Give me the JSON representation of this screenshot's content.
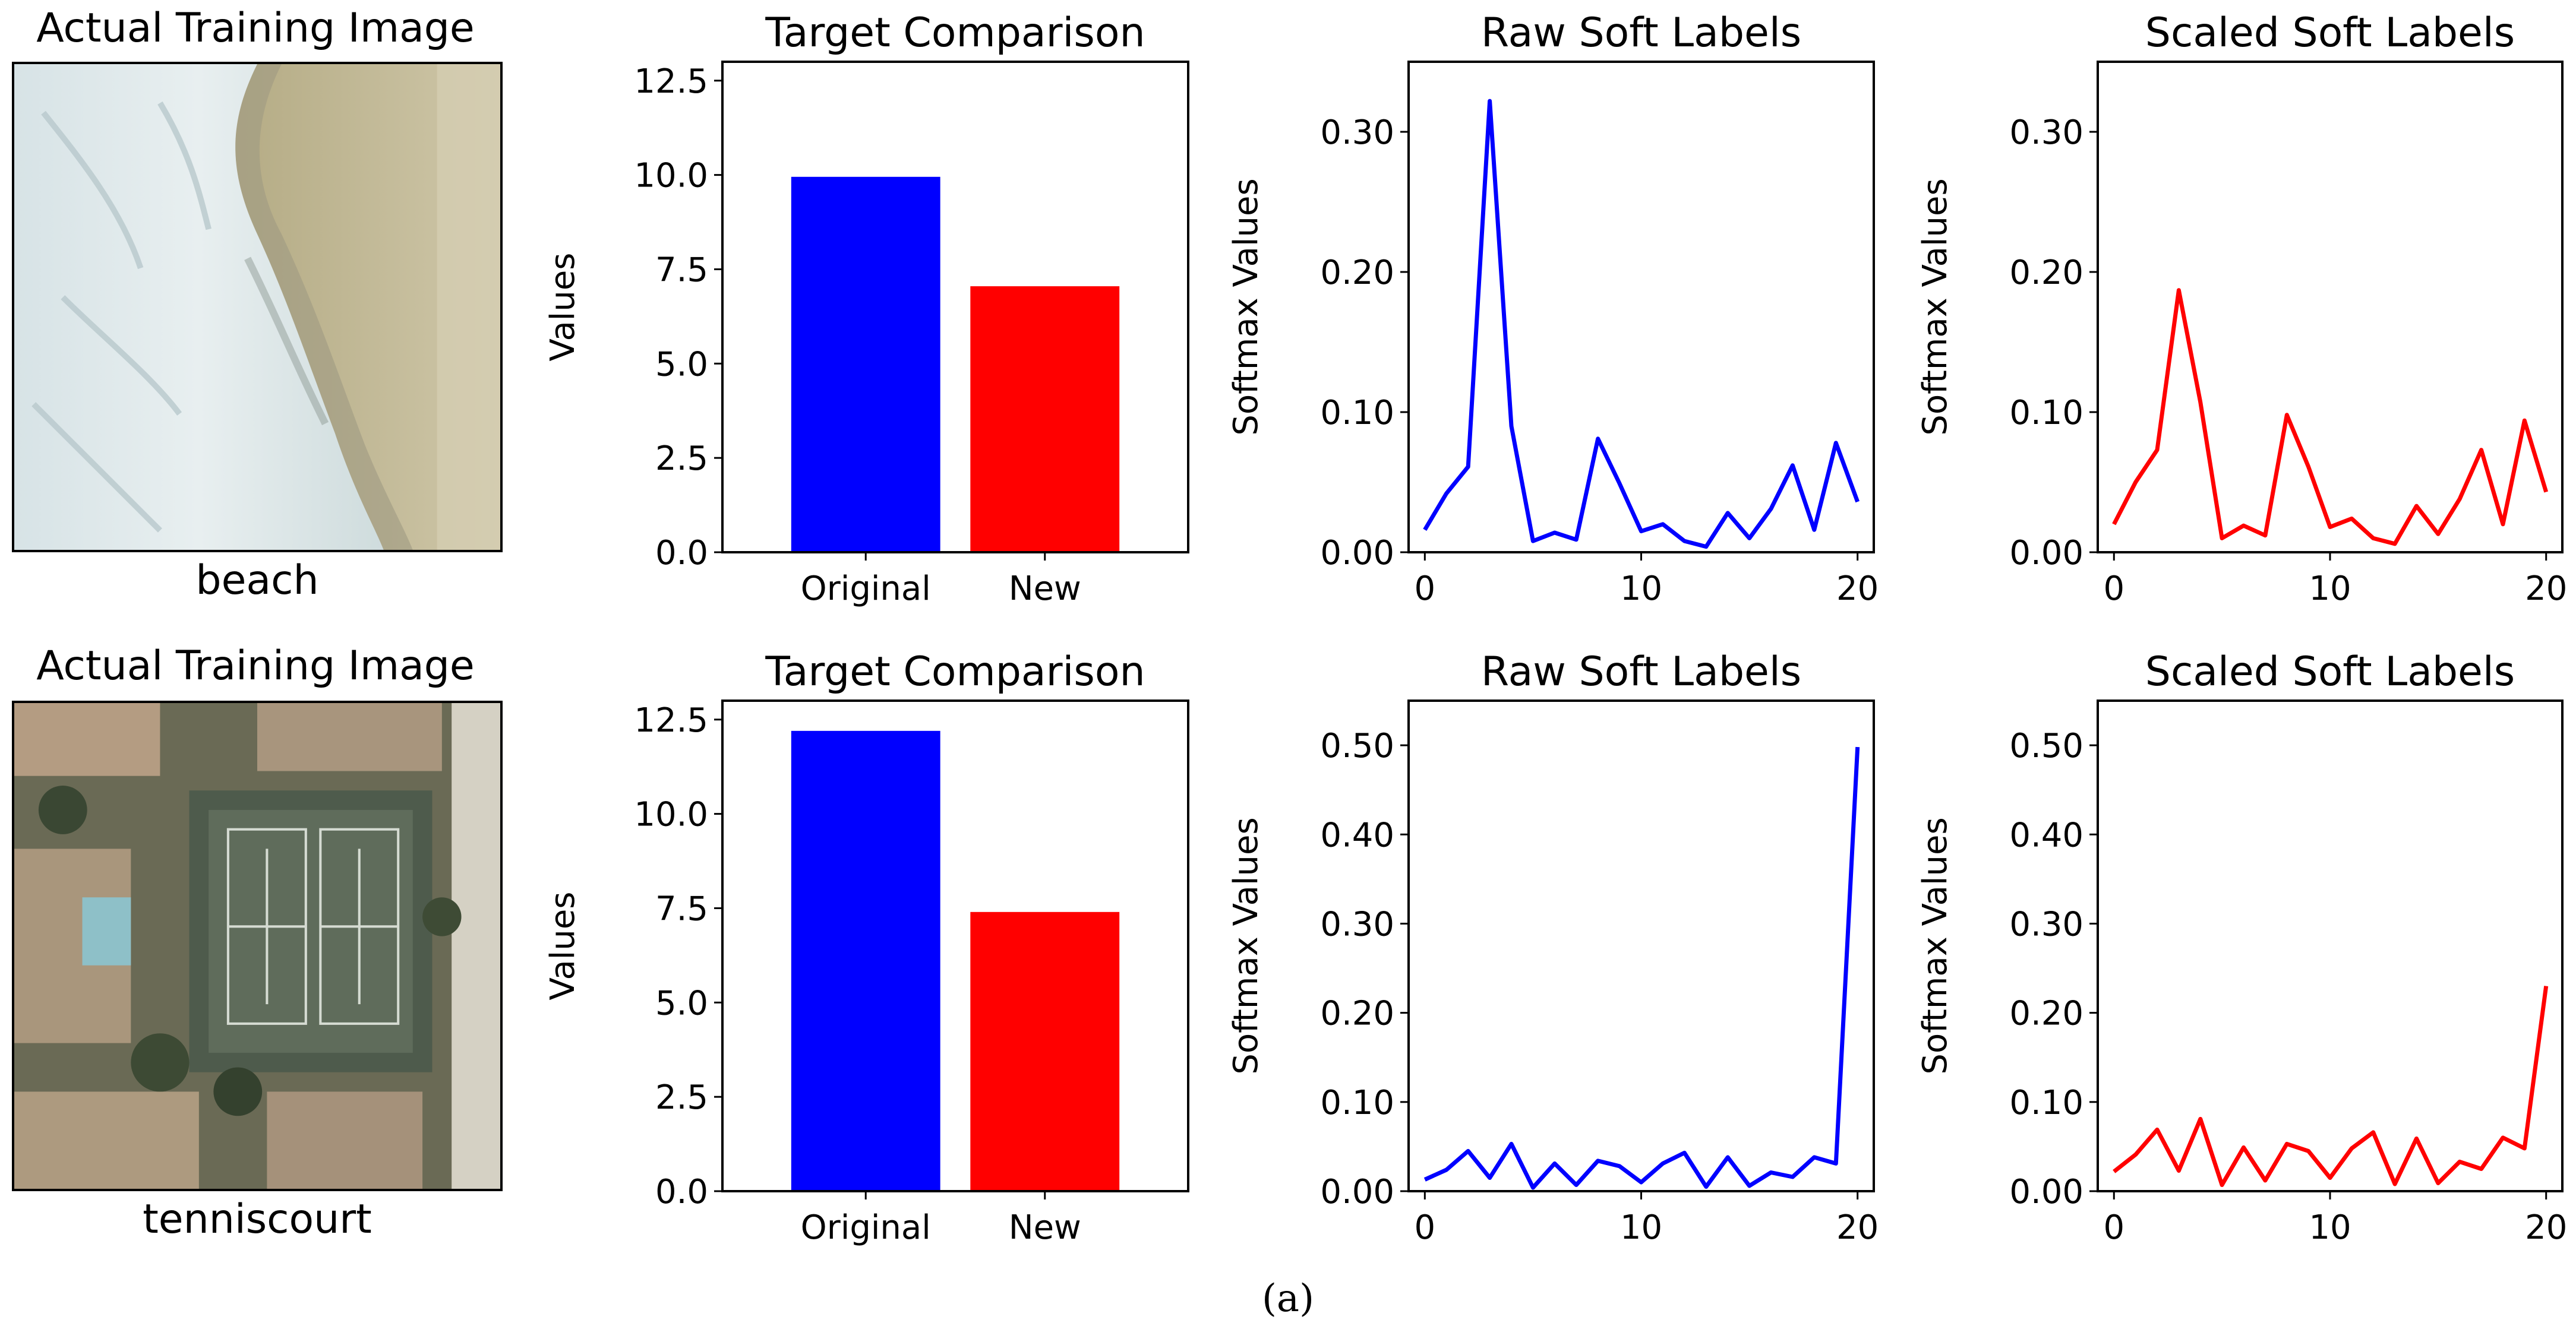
{
  "figure": {
    "caption": "(a)"
  },
  "colors": {
    "original": "#0000ff",
    "new": "#ff0000",
    "raw_line": "#0000ff",
    "scaled_line": "#ff0000"
  },
  "rows": [
    {
      "image_title": "Actual Training Image",
      "image_label": "beach"
    },
    {
      "image_title": "Actual Training Image",
      "image_label": "tenniscourt"
    }
  ],
  "chart_data": [
    {
      "row": 0,
      "type": "bar",
      "title": "Target Comparison",
      "xlabel": "",
      "ylabel": "Values",
      "categories": [
        "Original",
        "New"
      ],
      "values": [
        9.95,
        7.05
      ],
      "bar_colors": [
        "#0000ff",
        "#ff0000"
      ],
      "ylim": [
        0,
        13
      ],
      "yticks": [
        0.0,
        2.5,
        5.0,
        7.5,
        10.0,
        12.5
      ],
      "ytick_labels": [
        "0.0",
        "2.5",
        "5.0",
        "7.5",
        "10.0",
        "12.5"
      ]
    },
    {
      "row": 0,
      "type": "line",
      "title": "Raw Soft Labels",
      "xlabel": "",
      "ylabel": "Softmax Values",
      "x": [
        0,
        1,
        2,
        3,
        4,
        5,
        6,
        7,
        8,
        9,
        10,
        11,
        12,
        13,
        14,
        15,
        16,
        17,
        18,
        19,
        20
      ],
      "series": [
        {
          "name": "raw",
          "color": "#0000ff",
          "values": [
            0.016,
            0.042,
            0.061,
            0.322,
            0.09,
            0.008,
            0.014,
            0.009,
            0.081,
            0.049,
            0.015,
            0.02,
            0.008,
            0.004,
            0.028,
            0.01,
            0.031,
            0.062,
            0.016,
            0.078,
            0.036
          ]
        }
      ],
      "xlim": [
        -0.75,
        20.75
      ],
      "ylim": [
        0,
        0.35
      ],
      "xticks": [
        0,
        10,
        20
      ],
      "xtick_labels": [
        "0",
        "10",
        "20"
      ],
      "yticks": [
        0.0,
        0.1,
        0.2,
        0.3
      ],
      "ytick_labels": [
        "0.00",
        "0.10",
        "0.20",
        "0.30"
      ]
    },
    {
      "row": 0,
      "type": "line",
      "title": "Scaled Soft Labels",
      "xlabel": "",
      "ylabel": "Softmax Values",
      "x": [
        0,
        1,
        2,
        3,
        4,
        5,
        6,
        7,
        8,
        9,
        10,
        11,
        12,
        13,
        14,
        15,
        16,
        17,
        18,
        19,
        20
      ],
      "series": [
        {
          "name": "scaled",
          "color": "#ff0000",
          "values": [
            0.02,
            0.05,
            0.073,
            0.187,
            0.107,
            0.01,
            0.019,
            0.012,
            0.098,
            0.061,
            0.018,
            0.024,
            0.01,
            0.006,
            0.033,
            0.013,
            0.038,
            0.073,
            0.02,
            0.094,
            0.043
          ]
        }
      ],
      "xlim": [
        -0.75,
        20.75
      ],
      "ylim": [
        0,
        0.35
      ],
      "xticks": [
        0,
        10,
        20
      ],
      "xtick_labels": [
        "0",
        "10",
        "20"
      ],
      "yticks": [
        0.0,
        0.1,
        0.2,
        0.3
      ],
      "ytick_labels": [
        "0.00",
        "0.10",
        "0.20",
        "0.30"
      ]
    },
    {
      "row": 1,
      "type": "bar",
      "title": "Target Comparison",
      "xlabel": "",
      "ylabel": "Values",
      "categories": [
        "Original",
        "New"
      ],
      "values": [
        12.2,
        7.4
      ],
      "bar_colors": [
        "#0000ff",
        "#ff0000"
      ],
      "ylim": [
        0,
        13
      ],
      "yticks": [
        0.0,
        2.5,
        5.0,
        7.5,
        10.0,
        12.5
      ],
      "ytick_labels": [
        "0.0",
        "2.5",
        "5.0",
        "7.5",
        "10.0",
        "12.5"
      ]
    },
    {
      "row": 1,
      "type": "line",
      "title": "Raw Soft Labels",
      "xlabel": "",
      "ylabel": "Softmax Values",
      "x": [
        0,
        1,
        2,
        3,
        4,
        5,
        6,
        7,
        8,
        9,
        10,
        11,
        12,
        13,
        14,
        15,
        16,
        17,
        18,
        19,
        20
      ],
      "series": [
        {
          "name": "raw",
          "color": "#0000ff",
          "values": [
            0.013,
            0.024,
            0.045,
            0.015,
            0.053,
            0.004,
            0.031,
            0.007,
            0.034,
            0.028,
            0.01,
            0.031,
            0.043,
            0.005,
            0.038,
            0.006,
            0.021,
            0.016,
            0.038,
            0.031,
            0.498
          ]
        }
      ],
      "xlim": [
        -0.75,
        20.75
      ],
      "ylim": [
        0,
        0.55
      ],
      "xticks": [
        0,
        10,
        20
      ],
      "xtick_labels": [
        "0",
        "10",
        "20"
      ],
      "yticks": [
        0.0,
        0.1,
        0.2,
        0.3,
        0.4,
        0.5
      ],
      "ytick_labels": [
        "0.00",
        "0.10",
        "0.20",
        "0.30",
        "0.40",
        "0.50"
      ]
    },
    {
      "row": 1,
      "type": "line",
      "title": "Scaled Soft Labels",
      "xlabel": "",
      "ylabel": "Softmax Values",
      "x": [
        0,
        1,
        2,
        3,
        4,
        5,
        6,
        7,
        8,
        9,
        10,
        11,
        12,
        13,
        14,
        15,
        16,
        17,
        18,
        19,
        20
      ],
      "series": [
        {
          "name": "scaled",
          "color": "#ff0000",
          "values": [
            0.022,
            0.041,
            0.069,
            0.023,
            0.081,
            0.007,
            0.049,
            0.012,
            0.053,
            0.045,
            0.015,
            0.048,
            0.066,
            0.008,
            0.059,
            0.009,
            0.033,
            0.025,
            0.06,
            0.048,
            0.23
          ]
        }
      ],
      "xlim": [
        -0.75,
        20.75
      ],
      "ylim": [
        0,
        0.55
      ],
      "xticks": [
        0,
        10,
        20
      ],
      "xtick_labels": [
        "0",
        "10",
        "20"
      ],
      "yticks": [
        0.0,
        0.1,
        0.2,
        0.3,
        0.4,
        0.5
      ],
      "ytick_labels": [
        "0.00",
        "0.10",
        "0.20",
        "0.30",
        "0.40",
        "0.50"
      ]
    }
  ]
}
